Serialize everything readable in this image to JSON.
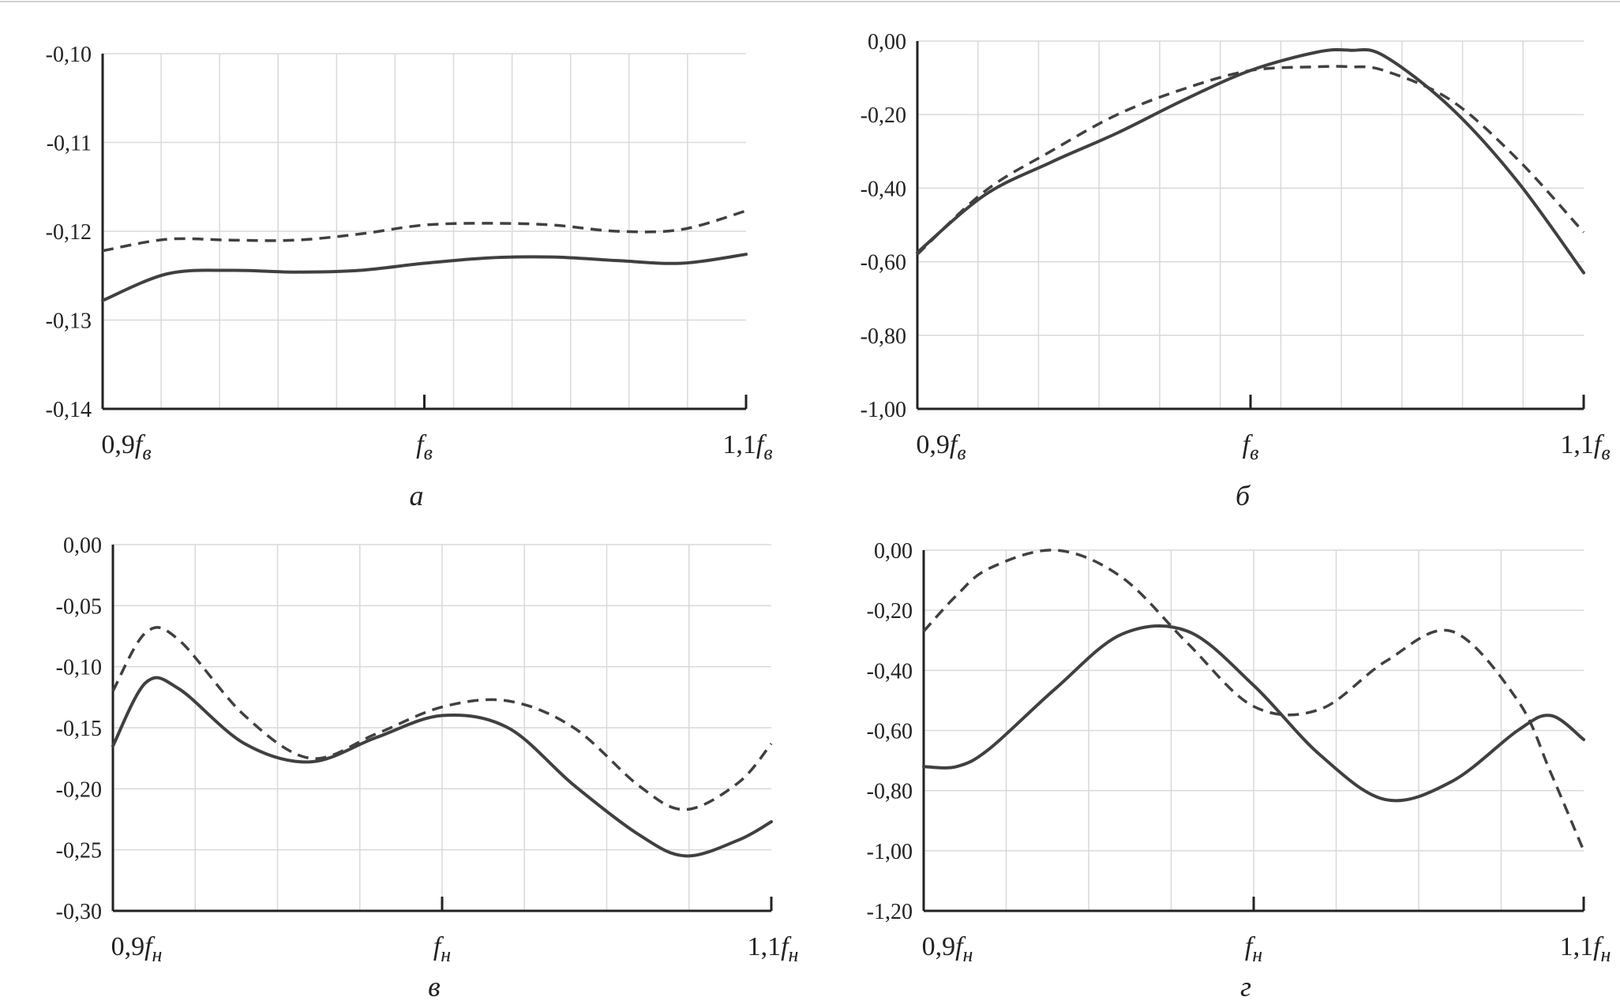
{
  "chart_data": [
    {
      "type": "line",
      "caption": "а",
      "ylim": [
        -0.14,
        -0.1
      ],
      "y_ticks": [
        "-0,10",
        "-0,11",
        "-0,12",
        "-0,13",
        "-0,14"
      ],
      "x_ticks": [
        {
          "main": "0,9",
          "base": "f",
          "sub": "в"
        },
        {
          "main": "",
          "base": "f",
          "sub": "в"
        },
        {
          "main": "1,1",
          "base": "f",
          "sub": "в"
        }
      ],
      "grid": true,
      "x": [
        0,
        0.1,
        0.2,
        0.3,
        0.4,
        0.5,
        0.6,
        0.7,
        0.8,
        0.9,
        1.0
      ],
      "series": [
        {
          "style": "solid",
          "values": [
            -0.1278,
            -0.1248,
            -0.1244,
            -0.1246,
            -0.1244,
            -0.1236,
            -0.123,
            -0.1229,
            -0.1233,
            -0.1236,
            -0.1226
          ]
        },
        {
          "style": "dashed",
          "values": [
            -0.1222,
            -0.1209,
            -0.121,
            -0.121,
            -0.1203,
            -0.1193,
            -0.1191,
            -0.1193,
            -0.12,
            -0.1198,
            -0.1177
          ]
        }
      ]
    },
    {
      "type": "line",
      "caption": "б",
      "ylim": [
        -1.0,
        0.0
      ],
      "y_ticks": [
        "0,00",
        "-0,20",
        "-0,40",
        "-0,60",
        "-0,80",
        "-1,00"
      ],
      "x_ticks": [
        {
          "main": "0,9",
          "base": "f",
          "sub": "в"
        },
        {
          "main": "",
          "base": "f",
          "sub": "в"
        },
        {
          "main": "1,1",
          "base": "f",
          "sub": "в"
        }
      ],
      "grid": true,
      "x": [
        0,
        0.1,
        0.2,
        0.3,
        0.4,
        0.5,
        0.6,
        0.65,
        0.7,
        0.8,
        0.9,
        1.0
      ],
      "series": [
        {
          "style": "solid",
          "values": [
            -0.575,
            -0.42,
            -0.33,
            -0.25,
            -0.16,
            -0.08,
            -0.03,
            -0.025,
            -0.04,
            -0.18,
            -0.38,
            -0.63
          ]
        },
        {
          "style": "dashed",
          "values": [
            -0.58,
            -0.41,
            -0.3,
            -0.2,
            -0.13,
            -0.08,
            -0.07,
            -0.07,
            -0.08,
            -0.16,
            -0.32,
            -0.52
          ]
        }
      ]
    },
    {
      "type": "line",
      "caption": "в",
      "ylim": [
        -0.3,
        0.0
      ],
      "y_ticks": [
        "0,00",
        "-0,05",
        "-0,10",
        "-0,15",
        "-0,20",
        "-0,25",
        "-0,30"
      ],
      "x_ticks": [
        {
          "main": "0,9",
          "base": "f",
          "sub": "н"
        },
        {
          "main": "",
          "base": "f",
          "sub": "н"
        },
        {
          "main": "1,1",
          "base": "f",
          "sub": "н"
        }
      ],
      "grid": true,
      "x": [
        0,
        0.05,
        0.1,
        0.2,
        0.3,
        0.4,
        0.5,
        0.6,
        0.7,
        0.8,
        0.87,
        0.95,
        1.0
      ],
      "series": [
        {
          "style": "solid",
          "values": [
            -0.165,
            -0.113,
            -0.118,
            -0.163,
            -0.178,
            -0.158,
            -0.14,
            -0.15,
            -0.197,
            -0.238,
            -0.255,
            -0.242,
            -0.227
          ]
        },
        {
          "style": "dashed",
          "values": [
            -0.12,
            -0.072,
            -0.078,
            -0.14,
            -0.175,
            -0.155,
            -0.133,
            -0.128,
            -0.15,
            -0.198,
            -0.217,
            -0.195,
            -0.163
          ]
        }
      ]
    },
    {
      "type": "line",
      "caption": "г",
      "ylim": [
        -1.2,
        0.0
      ],
      "y_ticks": [
        "0,00",
        "-0,20",
        "-0,40",
        "-0,60",
        "-0,80",
        "-1,00",
        "-1,20"
      ],
      "x_ticks": [
        {
          "main": "0,9",
          "base": "f",
          "sub": "н"
        },
        {
          "main": "",
          "base": "f",
          "sub": "н"
        },
        {
          "main": "1,1",
          "base": "f",
          "sub": "н"
        }
      ],
      "grid": true,
      "x": [
        0,
        0.05,
        0.1,
        0.2,
        0.3,
        0.4,
        0.5,
        0.6,
        0.7,
        0.8,
        0.9,
        0.95,
        1.0
      ],
      "series": [
        {
          "style": "solid",
          "values": [
            -0.72,
            -0.72,
            -0.66,
            -0.46,
            -0.28,
            -0.27,
            -0.45,
            -0.68,
            -0.83,
            -0.77,
            -0.6,
            -0.55,
            -0.63
          ]
        },
        {
          "style": "dashed",
          "values": [
            -0.27,
            -0.15,
            -0.06,
            0.0,
            -0.09,
            -0.31,
            -0.52,
            -0.53,
            -0.37,
            -0.27,
            -0.5,
            -0.74,
            -1.0
          ]
        }
      ]
    }
  ]
}
